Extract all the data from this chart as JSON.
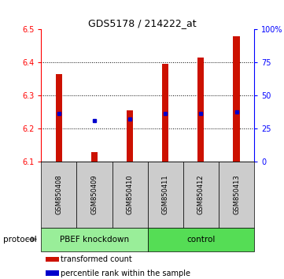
{
  "title": "GDS5178 / 214222_at",
  "categories": [
    "GSM850408",
    "GSM850409",
    "GSM850410",
    "GSM850411",
    "GSM850412",
    "GSM850413"
  ],
  "bar_values": [
    6.365,
    6.13,
    6.255,
    6.395,
    6.415,
    6.48
  ],
  "blue_marker_values": [
    6.245,
    6.225,
    6.23,
    6.245,
    6.245,
    6.25
  ],
  "baseline": 6.1,
  "ylim_left": [
    6.1,
    6.5
  ],
  "ylim_right": [
    0,
    100
  ],
  "yticks_left": [
    6.1,
    6.2,
    6.3,
    6.4,
    6.5
  ],
  "yticks_right": [
    0,
    25,
    50,
    75,
    100
  ],
  "ytick_labels_right": [
    "0",
    "25",
    "50",
    "75",
    "100%"
  ],
  "bar_color": "#cc1100",
  "blue_color": "#0000cc",
  "group1_label": "PBEF knockdown",
  "group2_label": "control",
  "protocol_label": "protocol",
  "protocol_bg1": "#99ee99",
  "protocol_bg2": "#55dd55",
  "sample_bg": "#cccccc",
  "legend1": "transformed count",
  "legend2": "percentile rank within the sample",
  "bar_width": 0.18,
  "title_fontsize": 9,
  "tick_fontsize": 7,
  "label_fontsize": 6,
  "prot_fontsize": 7.5,
  "legend_fontsize": 7
}
